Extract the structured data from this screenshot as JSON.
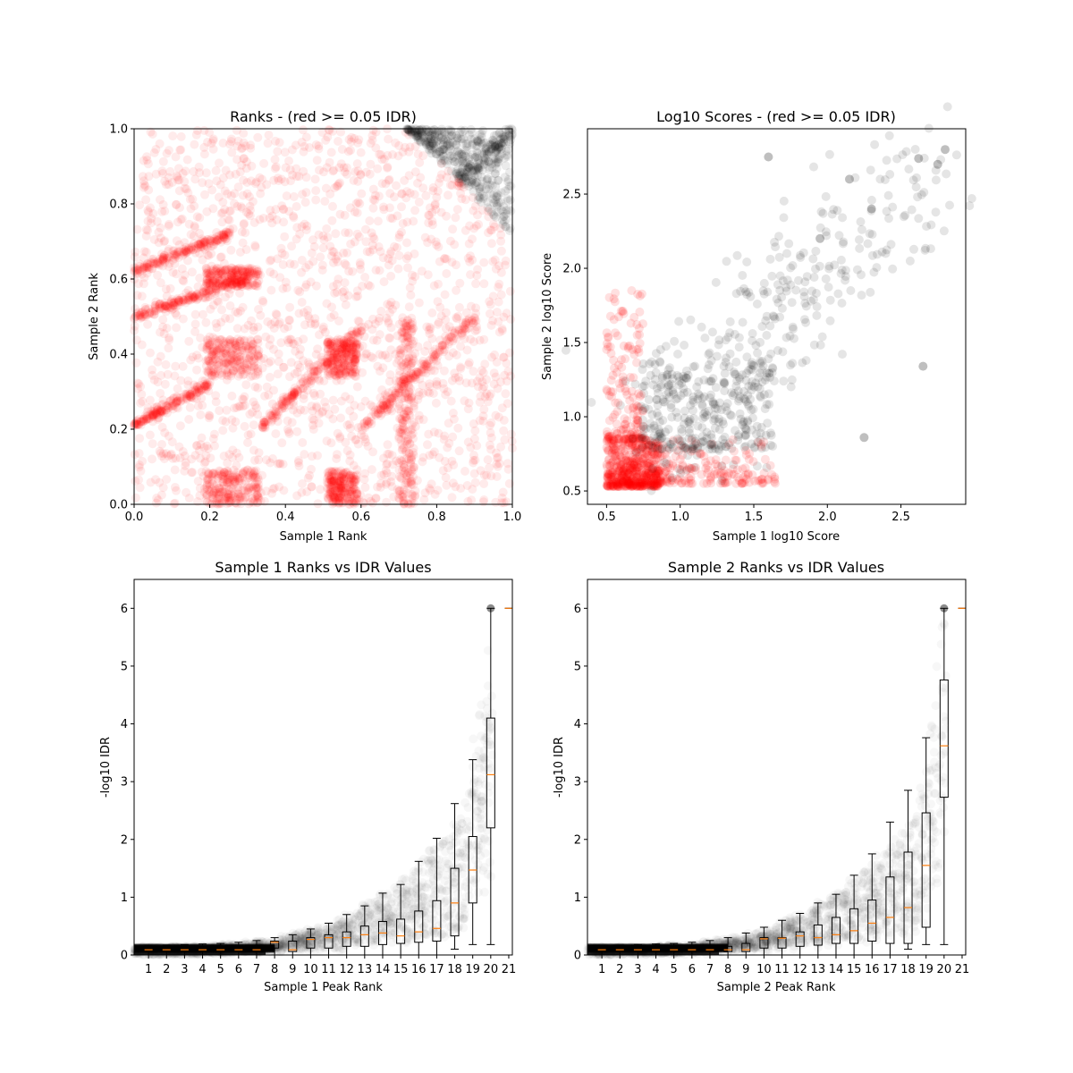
{
  "chart_data": [
    {
      "type": "scatter",
      "title": "Ranks - (red >= 0.05 IDR)",
      "xlabel": "Sample 1 Rank",
      "ylabel": "Sample 2 Rank",
      "xlim": [
        0,
        1
      ],
      "ylim": [
        0,
        1
      ],
      "xticks": [
        "0.0",
        "0.2",
        "0.4",
        "0.6",
        "0.8",
        "1.0"
      ],
      "yticks": [
        "0.0",
        "0.2",
        "0.4",
        "0.6",
        "0.8",
        "1.0"
      ],
      "colors": {
        "pass": "#000000",
        "fail": "#ff0000"
      },
      "threshold_curve": [
        [
          0.72,
          1.0
        ],
        [
          0.8,
          0.92
        ],
        [
          0.88,
          0.84
        ],
        [
          0.95,
          0.77
        ],
        [
          1.0,
          0.72
        ]
      ],
      "diagonal_bands": [
        [
          0.0,
          0.5,
          0.3,
          0.6
        ],
        [
          0.0,
          0.62,
          0.25,
          0.72
        ],
        [
          0.0,
          0.21,
          0.2,
          0.32
        ],
        [
          0.33,
          0.2,
          0.6,
          0.47
        ],
        [
          0.6,
          0.2,
          0.9,
          0.5
        ]
      ],
      "dense_blocks": [
        [
          0.19,
          0.33,
          0.34,
          0.44
        ],
        [
          0.19,
          0.33,
          0.0,
          0.09
        ],
        [
          0.19,
          0.33,
          0.58,
          0.63
        ],
        [
          0.51,
          0.59,
          0.34,
          0.44
        ],
        [
          0.51,
          0.59,
          0.0,
          0.09
        ],
        [
          0.7,
          0.74,
          0.0,
          0.5
        ]
      ]
    },
    {
      "type": "scatter",
      "title": "Log10 Scores - (red >= 0.05 IDR)",
      "xlabel": "Sample 1 log10 Score",
      "ylabel": "Sample 2 log10 Score",
      "xlim": [
        0.37,
        2.94
      ],
      "ylim": [
        0.41,
        2.94
      ],
      "xticks": [
        "0.5",
        "1.0",
        "1.5",
        "2.0",
        "2.5"
      ],
      "yticks": [
        "0.5",
        "1.0",
        "1.5",
        "2.0",
        "2.5"
      ],
      "colors": {
        "pass": "#000000",
        "fail": "#ff0000"
      },
      "red_core": {
        "x": [
          0.5,
          0.85
        ],
        "y": [
          0.53,
          0.85
        ]
      },
      "upper_points": [
        [
          2.8,
          2.8
        ],
        [
          2.75,
          2.7
        ],
        [
          2.62,
          2.74
        ],
        [
          2.65,
          1.34
        ],
        [
          1.6,
          2.75
        ],
        [
          2.25,
          0.86
        ],
        [
          2.15,
          2.6
        ],
        [
          1.95,
          2.2
        ],
        [
          2.3,
          2.4
        ]
      ]
    },
    {
      "type": "box",
      "title": "Sample 1 Ranks vs IDR Values",
      "xlabel": "Sample 1 Peak Rank",
      "ylabel": "-log10 IDR",
      "xticks": [
        "1",
        "2",
        "3",
        "4",
        "5",
        "6",
        "7",
        "8",
        "9",
        "10",
        "11",
        "12",
        "13",
        "14",
        "15",
        "16",
        "17",
        "18",
        "19",
        "20",
        "21"
      ],
      "yticks": [
        "0",
        "1",
        "2",
        "3",
        "4",
        "5",
        "6"
      ],
      "ylim": [
        0,
        6.5
      ],
      "boxes": [
        {
          "pos": 1,
          "min": 0.0,
          "q1": 0.06,
          "med": 0.09,
          "q3": 0.12,
          "max": 0.16
        },
        {
          "pos": 2,
          "min": 0.0,
          "q1": 0.06,
          "med": 0.09,
          "q3": 0.12,
          "max": 0.17
        },
        {
          "pos": 3,
          "min": 0.0,
          "q1": 0.06,
          "med": 0.09,
          "q3": 0.12,
          "max": 0.18
        },
        {
          "pos": 4,
          "min": 0.0,
          "q1": 0.06,
          "med": 0.09,
          "q3": 0.12,
          "max": 0.19
        },
        {
          "pos": 5,
          "min": 0.0,
          "q1": 0.06,
          "med": 0.09,
          "q3": 0.12,
          "max": 0.2
        },
        {
          "pos": 6,
          "min": 0.0,
          "q1": 0.06,
          "med": 0.09,
          "q3": 0.12,
          "max": 0.22
        },
        {
          "pos": 7,
          "min": 0.0,
          "q1": 0.06,
          "med": 0.09,
          "q3": 0.13,
          "max": 0.25
        },
        {
          "pos": 8,
          "min": 0.0,
          "q1": 0.12,
          "med": 0.22,
          "q3": 0.24,
          "max": 0.3
        },
        {
          "pos": 9,
          "min": 0.0,
          "q1": 0.06,
          "med": 0.09,
          "q3": 0.24,
          "max": 0.35
        },
        {
          "pos": 10,
          "min": 0.0,
          "q1": 0.12,
          "med": 0.27,
          "q3": 0.3,
          "max": 0.45
        },
        {
          "pos": 11,
          "min": 0.0,
          "q1": 0.12,
          "med": 0.3,
          "q3": 0.35,
          "max": 0.55
        },
        {
          "pos": 12,
          "min": 0.0,
          "q1": 0.15,
          "med": 0.3,
          "q3": 0.4,
          "max": 0.7
        },
        {
          "pos": 13,
          "min": 0.0,
          "q1": 0.15,
          "med": 0.35,
          "q3": 0.5,
          "max": 0.85
        },
        {
          "pos": 14,
          "min": 0.0,
          "q1": 0.18,
          "med": 0.38,
          "q3": 0.58,
          "max": 1.07
        },
        {
          "pos": 15,
          "min": 0.0,
          "q1": 0.2,
          "med": 0.33,
          "q3": 0.62,
          "max": 1.22
        },
        {
          "pos": 16,
          "min": 0.0,
          "q1": 0.22,
          "med": 0.4,
          "q3": 0.76,
          "max": 1.62
        },
        {
          "pos": 17,
          "min": 0.0,
          "q1": 0.24,
          "med": 0.46,
          "q3": 0.94,
          "max": 2.02
        },
        {
          "pos": 18,
          "min": 0.1,
          "q1": 0.33,
          "med": 0.9,
          "q3": 1.5,
          "max": 2.62
        },
        {
          "pos": 19,
          "min": 0.18,
          "q1": 0.9,
          "med": 1.47,
          "q3": 2.05,
          "max": 3.38
        },
        {
          "pos": 20,
          "min": 0.18,
          "q1": 2.2,
          "med": 3.12,
          "q3": 4.1,
          "max": 6.0
        },
        {
          "pos": 21,
          "min": 6.0,
          "q1": 6.0,
          "med": 6.0,
          "q3": 6.0,
          "max": 6.0
        }
      ],
      "outliers": [
        [
          20,
          6.0
        ]
      ],
      "colors": {
        "box": "#000000",
        "median": "#ff7f0e",
        "points": "#000000"
      }
    },
    {
      "type": "box",
      "title": "Sample 2 Ranks vs IDR Values",
      "xlabel": "Sample 2 Peak Rank",
      "ylabel": "-log10 IDR",
      "xticks": [
        "1",
        "2",
        "3",
        "4",
        "5",
        "6",
        "7",
        "8",
        "9",
        "10",
        "11",
        "12",
        "13",
        "14",
        "15",
        "16",
        "17",
        "18",
        "19",
        "20",
        "21"
      ],
      "yticks": [
        "0",
        "1",
        "2",
        "3",
        "4",
        "5",
        "6"
      ],
      "ylim": [
        0,
        6.5
      ],
      "boxes": [
        {
          "pos": 1,
          "min": 0.0,
          "q1": 0.06,
          "med": 0.09,
          "q3": 0.12,
          "max": 0.16
        },
        {
          "pos": 2,
          "min": 0.0,
          "q1": 0.06,
          "med": 0.09,
          "q3": 0.12,
          "max": 0.17
        },
        {
          "pos": 3,
          "min": 0.0,
          "q1": 0.06,
          "med": 0.09,
          "q3": 0.12,
          "max": 0.18
        },
        {
          "pos": 4,
          "min": 0.0,
          "q1": 0.06,
          "med": 0.09,
          "q3": 0.12,
          "max": 0.19
        },
        {
          "pos": 5,
          "min": 0.0,
          "q1": 0.06,
          "med": 0.09,
          "q3": 0.12,
          "max": 0.2
        },
        {
          "pos": 6,
          "min": 0.0,
          "q1": 0.06,
          "med": 0.09,
          "q3": 0.12,
          "max": 0.22
        },
        {
          "pos": 7,
          "min": 0.0,
          "q1": 0.06,
          "med": 0.09,
          "q3": 0.13,
          "max": 0.25
        },
        {
          "pos": 8,
          "min": 0.0,
          "q1": 0.06,
          "med": 0.09,
          "q3": 0.15,
          "max": 0.3
        },
        {
          "pos": 9,
          "min": 0.0,
          "q1": 0.06,
          "med": 0.09,
          "q3": 0.2,
          "max": 0.38
        },
        {
          "pos": 10,
          "min": 0.0,
          "q1": 0.12,
          "med": 0.28,
          "q3": 0.3,
          "max": 0.48
        },
        {
          "pos": 11,
          "min": 0.0,
          "q1": 0.12,
          "med": 0.29,
          "q3": 0.3,
          "max": 0.6
        },
        {
          "pos": 12,
          "min": 0.0,
          "q1": 0.15,
          "med": 0.33,
          "q3": 0.4,
          "max": 0.72
        },
        {
          "pos": 13,
          "min": 0.0,
          "q1": 0.17,
          "med": 0.3,
          "q3": 0.52,
          "max": 0.9
        },
        {
          "pos": 14,
          "min": 0.0,
          "q1": 0.2,
          "med": 0.35,
          "q3": 0.65,
          "max": 1.05
        },
        {
          "pos": 15,
          "min": 0.0,
          "q1": 0.2,
          "med": 0.42,
          "q3": 0.8,
          "max": 1.38
        },
        {
          "pos": 16,
          "min": 0.0,
          "q1": 0.24,
          "med": 0.55,
          "q3": 0.95,
          "max": 1.75
        },
        {
          "pos": 17,
          "min": 0.0,
          "q1": 0.2,
          "med": 0.65,
          "q3": 1.35,
          "max": 2.3
        },
        {
          "pos": 18,
          "min": 0.1,
          "q1": 0.2,
          "med": 0.82,
          "q3": 1.78,
          "max": 2.85
        },
        {
          "pos": 19,
          "min": 0.18,
          "q1": 0.48,
          "med": 1.55,
          "q3": 2.46,
          "max": 3.76
        },
        {
          "pos": 20,
          "min": 0.18,
          "q1": 2.73,
          "med": 3.62,
          "q3": 4.76,
          "max": 6.0
        },
        {
          "pos": 21,
          "min": 6.0,
          "q1": 6.0,
          "med": 6.0,
          "q3": 6.0,
          "max": 6.0
        }
      ],
      "outliers": [
        [
          20,
          6.0
        ]
      ],
      "colors": {
        "box": "#000000",
        "median": "#ff7f0e",
        "points": "#000000"
      }
    }
  ]
}
